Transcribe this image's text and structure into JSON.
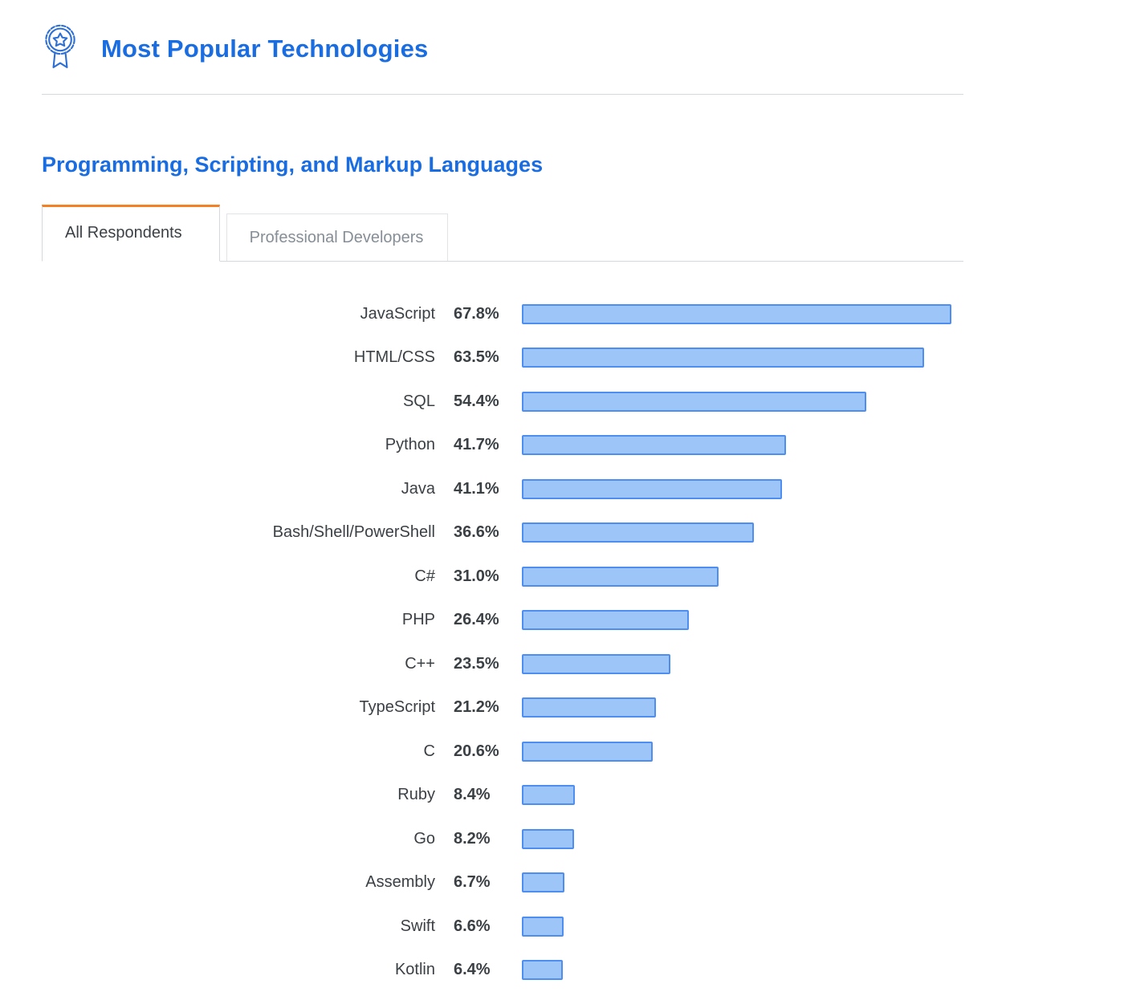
{
  "header": {
    "title": "Most Popular Technologies"
  },
  "section": {
    "title": "Programming, Scripting, and Markup Languages"
  },
  "tabs": [
    {
      "label": "All Respondents",
      "active": true
    },
    {
      "label": "Professional Developers",
      "active": false
    }
  ],
  "colors": {
    "heading_blue": "#1a6de0",
    "tab_accent_orange": "#f48024",
    "bar_fill": "#9ec5f8",
    "bar_border": "#4d8ef0",
    "text_dark": "#3b4045",
    "text_gray": "#868e96",
    "divider": "#d6d9dc"
  },
  "icons": {
    "award_badge": "award-badge-icon"
  },
  "chart_data": {
    "type": "bar",
    "orientation": "horizontal",
    "title": "Programming, Scripting, and Markup Languages",
    "categories": [
      "JavaScript",
      "HTML/CSS",
      "SQL",
      "Python",
      "Java",
      "Bash/Shell/PowerShell",
      "C#",
      "PHP",
      "C++",
      "TypeScript",
      "C",
      "Ruby",
      "Go",
      "Assembly",
      "Swift",
      "Kotlin"
    ],
    "values": [
      67.8,
      63.5,
      54.4,
      41.7,
      41.1,
      36.6,
      31.0,
      26.4,
      23.5,
      21.2,
      20.6,
      8.4,
      8.2,
      6.7,
      6.6,
      6.4
    ],
    "value_suffix": "%",
    "xlim": [
      0,
      70
    ],
    "grid": false,
    "legend": "none",
    "value_labels": "left-of-bar"
  }
}
